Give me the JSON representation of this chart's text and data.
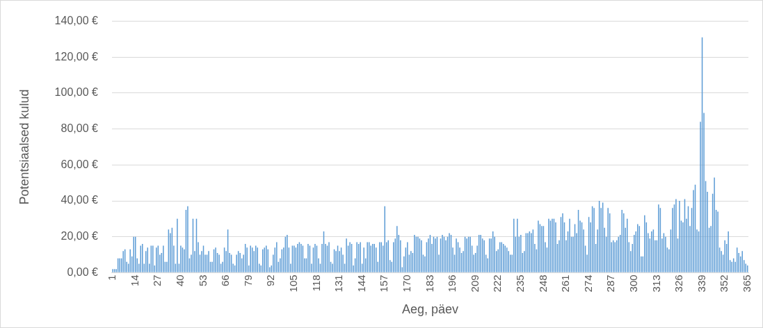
{
  "chart_data": {
    "type": "bar",
    "xlabel": "Aeg, päev",
    "ylabel": "Potentsiaalsed kulud",
    "color": "#5b9bd5",
    "grid": "y",
    "ylim": [
      0,
      140
    ],
    "yticks": [
      {
        "value": 0,
        "label": "0,00 €"
      },
      {
        "value": 20,
        "label": "20,00 €"
      },
      {
        "value": 40,
        "label": "40,00 €"
      },
      {
        "value": 60,
        "label": "60,00 €"
      },
      {
        "value": 80,
        "label": "80,00 €"
      },
      {
        "value": 100,
        "label": "100,00 €"
      },
      {
        "value": 120,
        "label": "120,00 €"
      },
      {
        "value": 140,
        "label": "140,00 €"
      }
    ],
    "categories": [
      "1",
      null,
      null,
      null,
      null,
      null,
      null,
      null,
      null,
      null,
      null,
      null,
      null,
      "14",
      null,
      null,
      null,
      null,
      null,
      null,
      null,
      null,
      null,
      null,
      null,
      null,
      "27",
      null,
      null,
      null,
      null,
      null,
      null,
      null,
      null,
      null,
      null,
      null,
      null,
      "40",
      null,
      null,
      null,
      null,
      null,
      null,
      null,
      null,
      null,
      null,
      null,
      null,
      "53",
      null,
      null,
      null,
      null,
      null,
      null,
      null,
      null,
      null,
      null,
      null,
      null,
      "66",
      null,
      null,
      null,
      null,
      null,
      null,
      null,
      null,
      null,
      null,
      null,
      null,
      "79",
      null,
      null,
      null,
      null,
      null,
      null,
      null,
      null,
      null,
      null,
      null,
      null,
      "92",
      null,
      null,
      null,
      null,
      null,
      null,
      null,
      null,
      null,
      null,
      null,
      null,
      "105",
      null,
      null,
      null,
      null,
      null,
      null,
      null,
      null,
      null,
      null,
      null,
      null,
      "118",
      null,
      null,
      null,
      null,
      null,
      null,
      null,
      null,
      null,
      null,
      null,
      null,
      "131",
      null,
      null,
      null,
      null,
      null,
      null,
      null,
      null,
      null,
      null,
      null,
      null,
      "144",
      null,
      null,
      null,
      null,
      null,
      null,
      null,
      null,
      null,
      null,
      null,
      null,
      "157",
      null,
      null,
      null,
      null,
      null,
      null,
      null,
      null,
      null,
      null,
      null,
      null,
      "170",
      null,
      null,
      null,
      null,
      null,
      null,
      null,
      null,
      null,
      null,
      null,
      null,
      "183",
      null,
      null,
      null,
      null,
      null,
      null,
      null,
      null,
      null,
      null,
      null,
      null,
      "196",
      null,
      null,
      null,
      null,
      null,
      null,
      null,
      null,
      null,
      null,
      null,
      null,
      "209",
      null,
      null,
      null,
      null,
      null,
      null,
      null,
      null,
      null,
      null,
      null,
      null,
      "222",
      null,
      null,
      null,
      null,
      null,
      null,
      null,
      null,
      null,
      null,
      null,
      null,
      "235",
      null,
      null,
      null,
      null,
      null,
      null,
      null,
      null,
      null,
      null,
      null,
      null,
      "248",
      null,
      null,
      null,
      null,
      null,
      null,
      null,
      null,
      null,
      null,
      null,
      null,
      "261",
      null,
      null,
      null,
      null,
      null,
      null,
      null,
      null,
      null,
      null,
      null,
      null,
      "274",
      null,
      null,
      null,
      null,
      null,
      null,
      null,
      null,
      null,
      null,
      null,
      null,
      "287",
      null,
      null,
      null,
      null,
      null,
      null,
      null,
      null,
      null,
      null,
      null,
      null,
      "300",
      null,
      null,
      null,
      null,
      null,
      null,
      null,
      null,
      null,
      null,
      null,
      null,
      "313",
      null,
      null,
      null,
      null,
      null,
      null,
      null,
      null,
      null,
      null,
      null,
      null,
      "326",
      null,
      null,
      null,
      null,
      null,
      null,
      null,
      null,
      null,
      null,
      null,
      null,
      "339",
      null,
      null,
      null,
      null,
      null,
      null,
      null,
      null,
      null,
      null,
      null,
      null,
      "352",
      null,
      null,
      null,
      null,
      null,
      null,
      null,
      null,
      null,
      null,
      null,
      null,
      "365"
    ],
    "values": [
      2,
      2,
      2,
      8,
      8,
      8,
      12,
      13,
      6,
      5,
      13,
      9,
      20,
      20,
      8,
      5,
      15,
      16,
      5,
      12,
      14,
      5,
      15,
      15,
      4,
      14,
      15,
      10,
      11,
      15,
      6,
      6,
      24,
      22,
      25,
      15,
      5,
      30,
      5,
      15,
      14,
      13,
      35,
      37,
      8,
      10,
      30,
      12,
      30,
      17,
      10,
      12,
      15,
      10,
      10,
      12,
      6,
      6,
      13,
      14,
      11,
      10,
      5,
      6,
      14,
      12,
      24,
      11,
      10,
      5,
      4,
      10,
      12,
      11,
      8,
      10,
      16,
      14,
      4,
      15,
      14,
      12,
      15,
      14,
      5,
      4,
      13,
      14,
      15,
      13,
      3,
      4,
      10,
      14,
      17,
      6,
      8,
      13,
      14,
      20,
      21,
      14,
      5,
      15,
      15,
      14,
      16,
      17,
      16,
      15,
      8,
      8,
      16,
      15,
      5,
      14,
      16,
      15,
      8,
      5,
      16,
      23,
      16,
      15,
      17,
      6,
      5,
      13,
      12,
      15,
      12,
      14,
      10,
      5,
      19,
      15,
      17,
      16,
      4,
      8,
      17,
      16,
      17,
      5,
      14,
      8,
      17,
      17,
      15,
      16,
      16,
      14,
      6,
      17,
      17,
      15,
      37,
      17,
      18,
      7,
      6,
      17,
      19,
      26,
      21,
      18,
      3,
      9,
      14,
      17,
      10,
      12,
      11,
      21,
      20,
      20,
      19,
      18,
      10,
      9,
      17,
      19,
      21,
      16,
      20,
      19,
      20,
      10,
      19,
      21,
      20,
      18,
      20,
      22,
      21,
      14,
      10,
      19,
      17,
      14,
      11,
      12,
      20,
      19,
      20,
      20,
      15,
      10,
      11,
      15,
      21,
      21,
      19,
      18,
      10,
      8,
      19,
      19,
      23,
      20,
      12,
      13,
      17,
      17,
      16,
      15,
      14,
      12,
      10,
      10,
      30,
      20,
      30,
      20,
      21,
      11,
      12,
      22,
      22,
      23,
      22,
      24,
      16,
      13,
      29,
      27,
      26,
      26,
      17,
      14,
      30,
      29,
      30,
      30,
      28,
      16,
      18,
      31,
      33,
      28,
      18,
      23,
      30,
      20,
      20,
      27,
      22,
      35,
      29,
      28,
      24,
      15,
      10,
      31,
      28,
      37,
      36,
      16,
      24,
      40,
      36,
      39,
      25,
      20,
      36,
      33,
      17,
      18,
      17,
      18,
      20,
      21,
      35,
      33,
      25,
      30,
      17,
      12,
      16,
      21,
      23,
      27,
      26,
      9,
      9,
      32,
      28,
      22,
      19,
      23,
      24,
      18,
      18,
      38,
      36,
      19,
      22,
      20,
      14,
      13,
      24,
      36,
      38,
      41,
      19,
      40,
      29,
      28,
      41,
      30,
      37,
      26,
      36,
      46,
      49,
      24,
      23,
      84,
      131,
      89,
      51,
      45,
      25,
      26,
      44,
      53,
      35,
      34,
      14,
      12,
      10,
      18,
      16,
      23,
      7,
      6,
      8,
      6,
      14,
      11,
      9,
      12,
      7,
      5,
      4
    ]
  }
}
